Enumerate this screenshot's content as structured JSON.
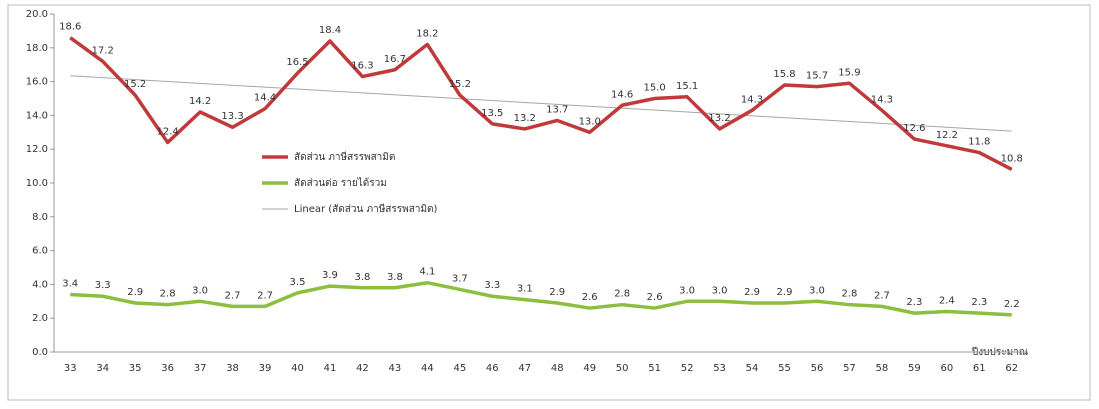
{
  "chart_data": {
    "type": "line",
    "x_label": "ปีงบประมาณ",
    "categories": [
      "33",
      "34",
      "35",
      "36",
      "37",
      "38",
      "39",
      "40",
      "41",
      "42",
      "43",
      "44",
      "45",
      "46",
      "47",
      "48",
      "49",
      "50",
      "51",
      "52",
      "53",
      "54",
      "55",
      "56",
      "57",
      "58",
      "59",
      "60",
      "61",
      "62"
    ],
    "series": [
      {
        "name": "สัดส่วน ภาษีสรรพสามิต",
        "color": "#c0393b",
        "values": [
          18.6,
          17.2,
          15.2,
          12.4,
          14.2,
          13.3,
          14.4,
          16.5,
          18.4,
          16.3,
          16.7,
          18.2,
          15.2,
          13.5,
          13.2,
          13.7,
          13.0,
          14.6,
          15.0,
          15.1,
          13.2,
          14.3,
          15.8,
          15.7,
          15.9,
          14.3,
          12.6,
          12.2,
          11.8,
          10.8
        ],
        "value_labels": [
          "18.6",
          "17.2",
          "15.2",
          "12.4",
          "14.2",
          "13.3",
          "14.4",
          "16.5",
          "18.4",
          "16.3",
          "16.7",
          "18.2",
          "15.2",
          "13.5",
          "13.2",
          "13.7",
          "13.0",
          "14.6",
          "15.0",
          "15.1",
          "13.2",
          "14.3",
          "15.8",
          "15.7",
          "15.9",
          "14.3",
          "12.6",
          "12.2",
          "11.8",
          "10.8"
        ]
      },
      {
        "name": "สัดส่วนต่อ รายได้รวม",
        "color": "#8cbf3f",
        "values": [
          3.4,
          3.3,
          2.9,
          2.8,
          3.0,
          2.7,
          2.7,
          3.5,
          3.9,
          3.8,
          3.8,
          4.1,
          3.7,
          3.3,
          3.1,
          2.9,
          2.6,
          2.8,
          2.6,
          3.0,
          3.0,
          2.9,
          2.9,
          3.0,
          2.8,
          2.7,
          2.3,
          2.4,
          2.3,
          2.2
        ],
        "value_labels": [
          "3.4",
          "3.3",
          "2.9",
          "2.8",
          "3.0",
          "2.7",
          "2.7",
          "3.5",
          "3.9",
          "3.8",
          "3.8",
          "4.1",
          "3.7",
          "3.3",
          "3.1",
          "2.9",
          "2.6",
          "2.8",
          "2.6",
          "3.0",
          "3.0",
          "2.9",
          "2.9",
          "3.0",
          "2.8",
          "2.7",
          "2.3",
          "2.4",
          "2.3",
          "2.2"
        ]
      }
    ],
    "trendline": {
      "name": "Linear (สัดส่วน ภาษีสรรพสามิต)",
      "color": "#a6a6a6",
      "series_index": 0
    },
    "ylim": [
      0,
      20
    ],
    "yticks": [
      {
        "value": 0,
        "label": "0.0"
      },
      {
        "value": 2,
        "label": "2.0"
      },
      {
        "value": 4,
        "label": "4.0"
      },
      {
        "value": 6,
        "label": "6.0"
      },
      {
        "value": 8,
        "label": "8.0"
      },
      {
        "value": 10,
        "label": "10.0"
      },
      {
        "value": 12,
        "label": "12.0"
      },
      {
        "value": 14,
        "label": "14.0"
      },
      {
        "value": 16,
        "label": "16.0"
      },
      {
        "value": 18,
        "label": "18.0"
      },
      {
        "value": 20,
        "label": "20.0"
      }
    ],
    "grid": false
  }
}
